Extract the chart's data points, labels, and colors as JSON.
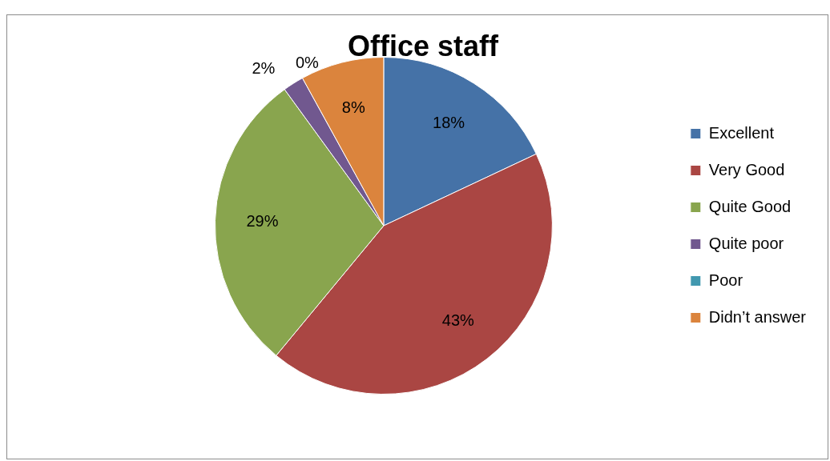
{
  "chart_data": {
    "type": "pie",
    "title": "Office staff",
    "categories": [
      "Excellent",
      "Very Good",
      "Quite Good",
      "Quite poor",
      "Poor",
      "Didn’t answer"
    ],
    "values": [
      18,
      43,
      29,
      2,
      0,
      8
    ],
    "value_labels": [
      "18%",
      "43%",
      "29%",
      "2%",
      "0%",
      "8%"
    ],
    "colors": [
      "#4572a7",
      "#aa4643",
      "#89a54e",
      "#71588f",
      "#4198af",
      "#db843d"
    ],
    "legend": "right"
  }
}
